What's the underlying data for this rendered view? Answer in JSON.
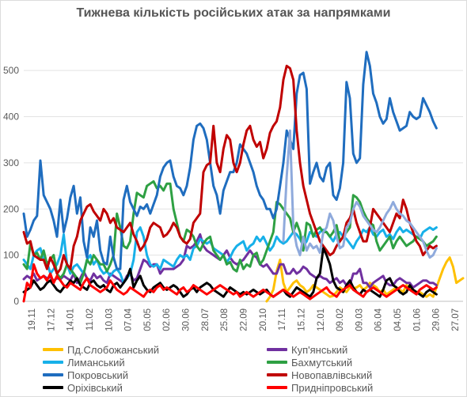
{
  "chart_data": {
    "type": "line",
    "title": "Тижнева кількість російських атак за напрямками",
    "ylim": [
      0,
      550
    ],
    "yticks": [
      0,
      100,
      200,
      300,
      400,
      500
    ],
    "grid": "horizontal",
    "legend_position": "bottom",
    "xtick_labels": [
      "19.11",
      "17.12",
      "14.01",
      "11.02",
      "10.03",
      "07.04",
      "05.05",
      "02.06",
      "30.06",
      "28.07",
      "25.08",
      "22.09",
      "20.10",
      "17.11",
      "15.12",
      "12.01",
      "09.02",
      "09.03",
      "06.04",
      "04.05",
      "01.06",
      "29.06",
      "27.07"
    ],
    "series": [
      {
        "name": "Пд.Слобожанський",
        "color": "#ffc000",
        "values": [
          null,
          null,
          null,
          null,
          null,
          null,
          null,
          null,
          null,
          null,
          null,
          null,
          null,
          null,
          null,
          null,
          null,
          null,
          null,
          null,
          null,
          null,
          null,
          null,
          null,
          null,
          null,
          null,
          null,
          null,
          null,
          null,
          null,
          null,
          null,
          null,
          null,
          null,
          null,
          null,
          null,
          null,
          null,
          null,
          null,
          null,
          null,
          null,
          null,
          null,
          null,
          null,
          null,
          null,
          null,
          null,
          null,
          null,
          null,
          null,
          null,
          null,
          null,
          null,
          null,
          null,
          null,
          null,
          null,
          null,
          null,
          null,
          null,
          0,
          10,
          25,
          65,
          90,
          40,
          20,
          30,
          40,
          45,
          35,
          30,
          20,
          25,
          35,
          30,
          25,
          20,
          15,
          10,
          12,
          20,
          30,
          25,
          20,
          30,
          28,
          30,
          35,
          25,
          30,
          40,
          35,
          30,
          20,
          25,
          15,
          20,
          25,
          30,
          25,
          20,
          35,
          30,
          25,
          20,
          20,
          15,
          10,
          15,
          10,
          30,
          50,
          70,
          85,
          95,
          75,
          40,
          45,
          50
        ]
      },
      {
        "name": "Куп'янський",
        "color": "#7030a0",
        "values": [
          48,
          55,
          50,
          60,
          45,
          50,
          55,
          50,
          52,
          45,
          50,
          48,
          55,
          50,
          45,
          60,
          40,
          50,
          65,
          50,
          45,
          60,
          50,
          55,
          45,
          40,
          60,
          55,
          50,
          45,
          40,
          55,
          60,
          45,
          50,
          70,
          90,
          85,
          75,
          80,
          80,
          60,
          70,
          70,
          70,
          70,
          75,
          80,
          90,
          120,
          115,
          120,
          130,
          145,
          120,
          110,
          105,
          100,
          95,
          90,
          100,
          110,
          95,
          85,
          80,
          85,
          90,
          100,
          110,
          100,
          95,
          80,
          75,
          80,
          70,
          60,
          60,
          80,
          80,
          60,
          60,
          70,
          60,
          65,
          75,
          70,
          60,
          55,
          50,
          55,
          50,
          48,
          40,
          45,
          50,
          40,
          45,
          35,
          35,
          60,
          60,
          70,
          40,
          40,
          30,
          40,
          45,
          50,
          55,
          40,
          35,
          35,
          45,
          50,
          45,
          40,
          40,
          30,
          35,
          40,
          45,
          45,
          40,
          40,
          35
        ]
      },
      {
        "name": "Лиманський",
        "color": "#17b0e9",
        "values": [
          90,
          80,
          70,
          100,
          110,
          115,
          90,
          85,
          60,
          70,
          80,
          100,
          145,
          80,
          60,
          75,
          80,
          70,
          60,
          90,
          100,
          80,
          90,
          70,
          60,
          65,
          55,
          65,
          70,
          60,
          40,
          50,
          60,
          90,
          150,
          160,
          140,
          100,
          80,
          75,
          80,
          70,
          90,
          85,
          80,
          75,
          90,
          100,
          95,
          100,
          90,
          115,
          120,
          135,
          130,
          125,
          130,
          115,
          110,
          105,
          100,
          85,
          95,
          110,
          120,
          125,
          130,
          110,
          120,
          125,
          140,
          130,
          140,
          125,
          110,
          120,
          140,
          130,
          125,
          130,
          140,
          150,
          145,
          135,
          120,
          130,
          150,
          145,
          140,
          150,
          155,
          150,
          140,
          130,
          145,
          150,
          140,
          135,
          125,
          115,
          130,
          140,
          155,
          150,
          160,
          145,
          140,
          150,
          155,
          140,
          145,
          135,
          150,
          160,
          150,
          155,
          150,
          145,
          140,
          135,
          150,
          155,
          160,
          155,
          160
        ]
      },
      {
        "name": "Бахмутський",
        "color": "#2ea043",
        "values": [
          80,
          70,
          125,
          100,
          105,
          90,
          110,
          80,
          90,
          100,
          60,
          50,
          60,
          80,
          70,
          60,
          50,
          40,
          60,
          90,
          80,
          100,
          90,
          80,
          80,
          65,
          80,
          100,
          190,
          160,
          120,
          115,
          130,
          190,
          235,
          230,
          225,
          250,
          255,
          260,
          245,
          250,
          240,
          255,
          255,
          200,
          170,
          140,
          130,
          155,
          150,
          140,
          120,
          110,
          125,
          135,
          140,
          110,
          100,
          90,
          100,
          80,
          85,
          70,
          65,
          90,
          70,
          80,
          75,
          100,
          105,
          80,
          90,
          110,
          130,
          150,
          215,
          210,
          200,
          190,
          180,
          150,
          170,
          150,
          110,
          170,
          165,
          140,
          155,
          160,
          150,
          150,
          140,
          150,
          165,
          130,
          140,
          150,
          160,
          230,
          225,
          215,
          195,
          180,
          170,
          165,
          130,
          110,
          120,
          130,
          140,
          115,
          130,
          140,
          130,
          120,
          125,
          130,
          140,
          135,
          130,
          120,
          125,
          130,
          140
        ]
      },
      {
        "name": "Покровський",
        "color": "#1f6dbf",
        "values": [
          190,
          140,
          155,
          175,
          185,
          305,
          230,
          215,
          200,
          175,
          140,
          220,
          150,
          180,
          225,
          250,
          190,
          225,
          130,
          95,
          160,
          140,
          175,
          110,
          85,
          80,
          140,
          95,
          70,
          70,
          220,
          250,
          215,
          200,
          185,
          205,
          200,
          210,
          190,
          210,
          230,
          270,
          290,
          300,
          305,
          270,
          250,
          245,
          230,
          250,
          290,
          350,
          380,
          385,
          375,
          350,
          300,
          250,
          230,
          190,
          240,
          260,
          280,
          280,
          300,
          340,
          330,
          320,
          300,
          280,
          250,
          230,
          220,
          200,
          200,
          180,
          200,
          250,
          300,
          370,
          350,
          330,
          450,
          490,
          495,
          460,
          255,
          280,
          300,
          270,
          260,
          290,
          300,
          230,
          220,
          245,
          300,
          475,
          440,
          320,
          300,
          310,
          470,
          540,
          510,
          450,
          430,
          400,
          385,
          395,
          440,
          410,
          390,
          370,
          375,
          380,
          410,
          400,
          395,
          400,
          440,
          425,
          410,
          390,
          375
        ]
      },
      {
        "name": "Новопавлівський",
        "color": "#c00000",
        "values": [
          150,
          125,
          130,
          100,
          95,
          90,
          90,
          70,
          95,
          80,
          60,
          70,
          100,
          80,
          70,
          120,
          140,
          175,
          190,
          205,
          210,
          195,
          185,
          175,
          200,
          190,
          170,
          180,
          160,
          155,
          150,
          160,
          170,
          145,
          130,
          110,
          120,
          135,
          160,
          170,
          165,
          160,
          140,
          145,
          155,
          170,
          160,
          140,
          130,
          125,
          135,
          170,
          180,
          190,
          280,
          295,
          300,
          380,
          300,
          280,
          330,
          360,
          350,
          300,
          280,
          300,
          340,
          370,
          380,
          350,
          335,
          345,
          310,
          330,
          365,
          380,
          390,
          420,
          480,
          510,
          505,
          480,
          370,
          300,
          250,
          220,
          190,
          170,
          150,
          130,
          120,
          110,
          100,
          105,
          120,
          130,
          140,
          170,
          180,
          200,
          170,
          150,
          130,
          130,
          160,
          200,
          190,
          180,
          170,
          160,
          150,
          170,
          190,
          180,
          220,
          200,
          170,
          150,
          130,
          120,
          100,
          110,
          120,
          115,
          120
        ]
      },
      {
        "name": "Оріхівський",
        "color": "#000000",
        "values": [
          20,
          25,
          30,
          45,
          35,
          25,
          30,
          40,
          45,
          35,
          25,
          20,
          30,
          35,
          45,
          40,
          50,
          35,
          30,
          25,
          40,
          45,
          35,
          30,
          35,
          25,
          20,
          35,
          40,
          30,
          40,
          50,
          70,
          30,
          45,
          55,
          35,
          25,
          20,
          30,
          35,
          40,
          30,
          25,
          30,
          35,
          30,
          20,
          10,
          15,
          25,
          30,
          20,
          30,
          35,
          40,
          35,
          25,
          20,
          15,
          10,
          20,
          30,
          25,
          20,
          15,
          20,
          15,
          20,
          25,
          20,
          15,
          20,
          25,
          15,
          10,
          15,
          20,
          25,
          15,
          10,
          20,
          30,
          25,
          20,
          15,
          10,
          20,
          50,
          60,
          115,
          100,
          80,
          45,
          30,
          25,
          20,
          35,
          45,
          30,
          20,
          15,
          25,
          20,
          25,
          20,
          15,
          10,
          25,
          45,
          50,
          35,
          30,
          20,
          15,
          20,
          35,
          25,
          20,
          15,
          10,
          20,
          25,
          20,
          15
        ]
      },
      {
        "name": "Придніпровський",
        "color": "#ff0000",
        "values": [
          0,
          40,
          30,
          80,
          60,
          50,
          55,
          45,
          60,
          40,
          55,
          45,
          35,
          30,
          40,
          35,
          30,
          25,
          40,
          50,
          35,
          30,
          25,
          20,
          25,
          30,
          45,
          35,
          25,
          20,
          15,
          20,
          30,
          25,
          20,
          15,
          10,
          20,
          25,
          20,
          30,
          35,
          25,
          30,
          25,
          20,
          15,
          25,
          30,
          20,
          25,
          35,
          30,
          25,
          20,
          15,
          20,
          25,
          30,
          35,
          30,
          25,
          20,
          15,
          20,
          10,
          15,
          20,
          15,
          10,
          15,
          20,
          25,
          20,
          15,
          10,
          15,
          20,
          25,
          20,
          15,
          10,
          15,
          20,
          15,
          10,
          5,
          10,
          15,
          20,
          25,
          30,
          20,
          15,
          10,
          20,
          25,
          30,
          35,
          25,
          20,
          15,
          10,
          20,
          25,
          30,
          25,
          20,
          15,
          10,
          15,
          20,
          25,
          30,
          35,
          30,
          25,
          20,
          15,
          25,
          30,
          35,
          30,
          25,
          30
        ]
      },
      {
        "name": "",
        "color": "#8faadc",
        "values": [
          null,
          null,
          null,
          null,
          null,
          null,
          null,
          null,
          null,
          null,
          null,
          null,
          null,
          null,
          null,
          null,
          null,
          null,
          null,
          null,
          null,
          null,
          null,
          null,
          null,
          null,
          null,
          null,
          null,
          null,
          null,
          null,
          null,
          null,
          null,
          null,
          null,
          null,
          null,
          null,
          null,
          null,
          null,
          null,
          null,
          null,
          null,
          null,
          null,
          null,
          null,
          null,
          null,
          null,
          null,
          null,
          null,
          null,
          null,
          null,
          null,
          null,
          null,
          null,
          null,
          null,
          null,
          null,
          null,
          null,
          null,
          null,
          null,
          null,
          null,
          null,
          null,
          null,
          130,
          270,
          370,
          160,
          120,
          100,
          140,
          110,
          125,
          115,
          120,
          105,
          150,
          160,
          190,
          175,
          140,
          115,
          120,
          160,
          170,
          200,
          215,
          205,
          185,
          175,
          165,
          155,
          150,
          160,
          175,
          190,
          200,
          215,
          200,
          190,
          185,
          175,
          170,
          160,
          150,
          140,
          130,
          110,
          95,
          100,
          115
        ]
      }
    ]
  }
}
